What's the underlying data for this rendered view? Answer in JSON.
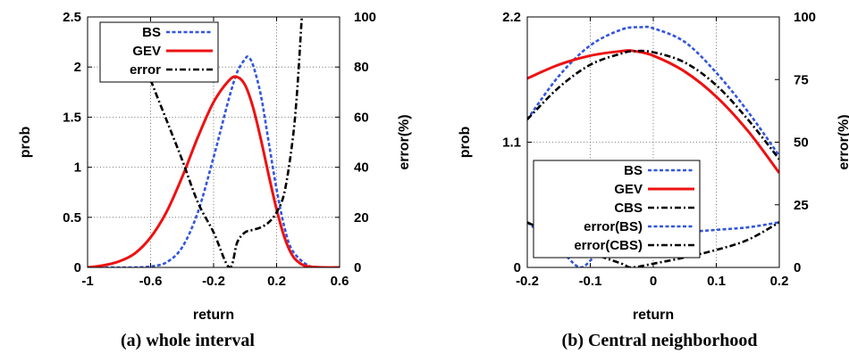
{
  "chart_data": [
    {
      "type": "line",
      "caption": "(a) whole interval",
      "xlabel": "return",
      "ylabel": "prob",
      "y2label": "error(%)",
      "xlim": [
        -1,
        0.6
      ],
      "ylim": [
        0,
        2.5
      ],
      "y2lim": [
        0,
        100
      ],
      "xticks": [
        -1,
        -0.6,
        -0.2,
        0.2,
        0.6
      ],
      "xtick_labels": [
        "-1",
        "-0.6",
        "-0.2",
        "0.2",
        "0.6"
      ],
      "yticks": [
        0,
        0.5,
        1,
        1.5,
        2,
        2.5
      ],
      "ytick_labels": [
        "0",
        "0.5",
        "1",
        "1.5",
        "2",
        "2.5"
      ],
      "y2ticks": [
        0,
        20,
        40,
        60,
        80,
        100
      ],
      "y2tick_labels": [
        "0",
        "20",
        "40",
        "60",
        "80",
        "100"
      ],
      "grid": true,
      "legend": "top-left",
      "series": [
        {
          "name": "BS",
          "axis": "left",
          "color": "#3355dd",
          "style": "dashed",
          "x": [
            -1.0,
            -0.9,
            -0.8,
            -0.7,
            -0.6,
            -0.5,
            -0.4,
            -0.3,
            -0.2,
            -0.15,
            -0.1,
            -0.05,
            0.0,
            0.02,
            0.05,
            0.1,
            0.15,
            0.2,
            0.25,
            0.3,
            0.4,
            0.5,
            0.6
          ],
          "y": [
            0.0,
            0.0,
            0.0,
            0.0,
            0.01,
            0.05,
            0.2,
            0.55,
            1.1,
            1.4,
            1.7,
            1.95,
            2.08,
            2.1,
            2.02,
            1.72,
            1.25,
            0.78,
            0.4,
            0.17,
            0.02,
            0.0,
            0.0
          ]
        },
        {
          "name": "GEV",
          "axis": "left",
          "color": "#ee1111",
          "style": "solid",
          "x": [
            -1.0,
            -0.9,
            -0.8,
            -0.7,
            -0.6,
            -0.5,
            -0.4,
            -0.3,
            -0.2,
            -0.1,
            -0.05,
            0.0,
            0.05,
            0.1,
            0.15,
            0.2,
            0.25,
            0.3,
            0.35,
            0.4,
            0.5,
            0.6
          ],
          "y": [
            0.0,
            0.02,
            0.06,
            0.14,
            0.3,
            0.55,
            0.9,
            1.3,
            1.65,
            1.87,
            1.9,
            1.82,
            1.6,
            1.28,
            0.92,
            0.58,
            0.3,
            0.12,
            0.04,
            0.01,
            0.0,
            0.0
          ]
        },
        {
          "name": "error",
          "axis": "right",
          "color": "#000000",
          "style": "dashdot",
          "x": [
            -0.65,
            -0.6,
            -0.5,
            -0.4,
            -0.3,
            -0.2,
            -0.1,
            -0.05,
            0.0,
            0.05,
            0.1,
            0.15,
            0.2,
            0.25,
            0.3,
            0.33,
            0.36
          ],
          "y": [
            85,
            75,
            59,
            43,
            26,
            14,
            0,
            10,
            14,
            15,
            16,
            18,
            22,
            30,
            50,
            70,
            100
          ]
        }
      ]
    },
    {
      "type": "line",
      "caption": "(b) Central neighborhood",
      "xlabel": "return",
      "ylabel": "prob",
      "y2label": "error(%)",
      "xlim": [
        -0.2,
        0.2
      ],
      "ylim": [
        0,
        2.2
      ],
      "y2lim": [
        0,
        100
      ],
      "xticks": [
        -0.2,
        -0.1,
        0,
        0.1,
        0.2
      ],
      "xtick_labels": [
        "-0.2",
        "-0.1",
        "0",
        "0.1",
        "0.2"
      ],
      "yticks": [
        0,
        1.1,
        2.2
      ],
      "ytick_labels": [
        "0",
        "1.1",
        "2.2"
      ],
      "y2ticks": [
        0,
        25,
        50,
        75,
        100
      ],
      "y2tick_labels": [
        "0",
        "25",
        "50",
        "75",
        "100"
      ],
      "grid": true,
      "legend": "center-left",
      "series": [
        {
          "name": "BS",
          "axis": "left",
          "color": "#3355dd",
          "style": "dashed",
          "x": [
            -0.2,
            -0.15,
            -0.1,
            -0.05,
            -0.02,
            0.0,
            0.05,
            0.1,
            0.15,
            0.2
          ],
          "y": [
            1.3,
            1.68,
            1.95,
            2.09,
            2.11,
            2.1,
            1.98,
            1.71,
            1.37,
            0.98
          ]
        },
        {
          "name": "GEV",
          "axis": "left",
          "color": "#ee1111",
          "style": "solid",
          "x": [
            -0.2,
            -0.15,
            -0.1,
            -0.05,
            -0.03,
            0.0,
            0.05,
            0.1,
            0.15,
            0.2
          ],
          "y": [
            1.66,
            1.78,
            1.86,
            1.9,
            1.9,
            1.86,
            1.72,
            1.5,
            1.2,
            0.83
          ]
        },
        {
          "name": "CBS",
          "axis": "left",
          "color": "#000000",
          "style": "dashdot",
          "x": [
            -0.2,
            -0.15,
            -0.1,
            -0.05,
            -0.03,
            0.0,
            0.05,
            0.1,
            0.15,
            0.2
          ],
          "y": [
            1.3,
            1.58,
            1.78,
            1.88,
            1.9,
            1.89,
            1.8,
            1.6,
            1.3,
            0.95
          ]
        },
        {
          "name": "error(BS)",
          "axis": "right",
          "color": "#3355dd",
          "style": "dashed",
          "x": [
            -0.2,
            -0.17,
            -0.14,
            -0.115,
            -0.09,
            -0.06,
            -0.03,
            0.0,
            0.05,
            0.1,
            0.15,
            0.2
          ],
          "y": [
            18,
            12,
            5,
            0,
            5,
            8.5,
            11,
            12.5,
            14,
            15,
            16,
            18
          ]
        },
        {
          "name": "error(CBS)",
          "axis": "right",
          "color": "#000000",
          "style": "dashdot",
          "x": [
            -0.2,
            -0.15,
            -0.1,
            -0.05,
            -0.035,
            0.0,
            0.05,
            0.1,
            0.15,
            0.2
          ],
          "y": [
            18,
            12,
            6,
            1.5,
            0,
            1.5,
            4,
            7,
            11,
            18
          ]
        }
      ]
    }
  ]
}
